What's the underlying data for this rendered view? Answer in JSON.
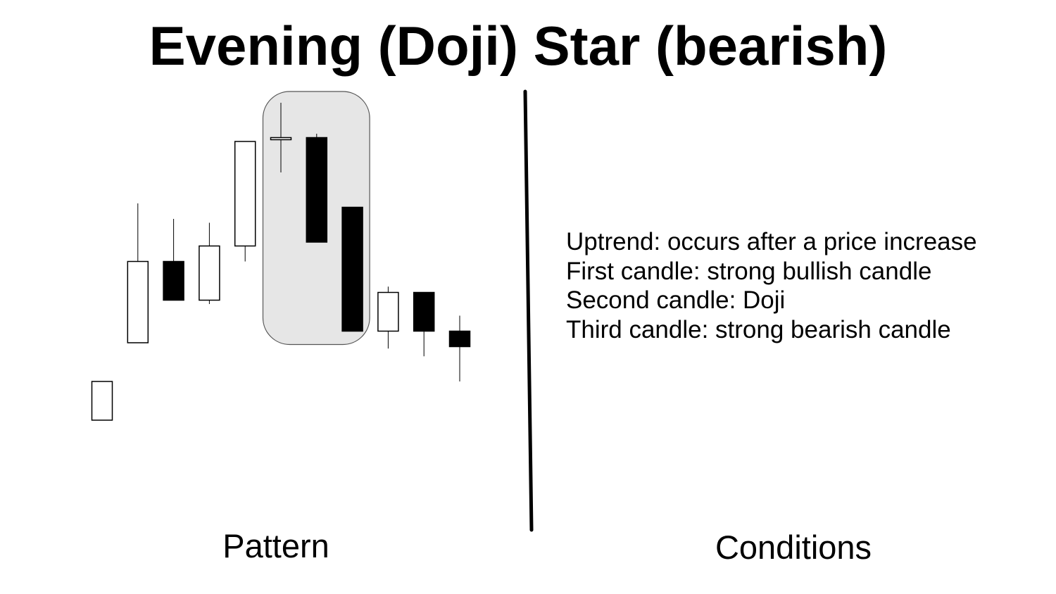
{
  "title": "Evening (Doji) Star (bearish)",
  "pattern_label": "Pattern",
  "conditions_label": "Conditions",
  "conditions": [
    "Uptrend: occurs after a price increase",
    "First candle: strong bullish candle",
    "Second candle: Doji",
    "Third candle: strong bearish candle"
  ],
  "colors": {
    "background": "#ffffff",
    "ink": "#000000",
    "highlight_fill": "#e6e6e6",
    "highlight_stroke": "#555555"
  },
  "candles": [
    {
      "type": "bullish",
      "open": 5.0,
      "close": 6.0,
      "high": 6.0,
      "low": 5.0
    },
    {
      "type": "bullish",
      "open": 7.0,
      "close": 9.1,
      "high": 10.6,
      "low": 7.0
    },
    {
      "type": "bearish",
      "open": 9.1,
      "close": 8.1,
      "high": 10.2,
      "low": 8.1
    },
    {
      "type": "bullish",
      "open": 8.1,
      "close": 9.5,
      "high": 10.1,
      "low": 8.0
    },
    {
      "type": "bullish",
      "open": 9.5,
      "close": 12.2,
      "high": 12.2,
      "low": 9.1
    },
    {
      "type": "doji",
      "open": 12.25,
      "close": 12.3,
      "high": 13.2,
      "low": 11.4
    },
    {
      "type": "bearish",
      "open": 12.3,
      "close": 9.6,
      "high": 12.4,
      "low": 9.6
    },
    {
      "type": "bearish",
      "open": 10.5,
      "close": 7.3,
      "high": 10.5,
      "low": 7.3
    },
    {
      "type": "bullish",
      "open": 7.3,
      "close": 8.3,
      "high": 8.45,
      "low": 6.85
    },
    {
      "type": "bearish",
      "open": 8.3,
      "close": 7.3,
      "high": 8.3,
      "low": 6.65
    },
    {
      "type": "bearish",
      "open": 7.3,
      "close": 6.9,
      "high": 7.7,
      "low": 6.0
    }
  ],
  "highlight": {
    "first_candle": 5,
    "last_candle": 7
  }
}
